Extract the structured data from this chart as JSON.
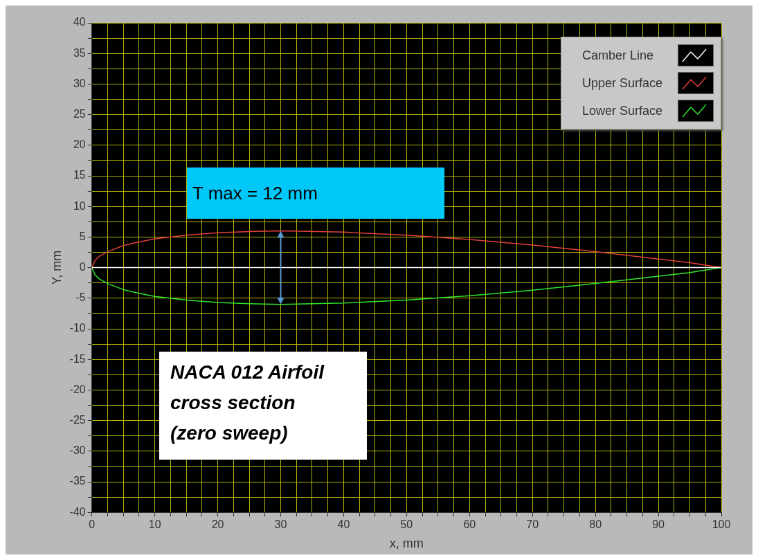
{
  "chart_data": {
    "type": "line",
    "xlabel": "x, mm",
    "ylabel": "Y, mm",
    "xlim": [
      0,
      100
    ],
    "xticks": [
      0,
      {
        "value": 2.5,
        "label": null
      },
      {
        "value": 5,
        "label": null
      },
      {
        "value": 7.5,
        "label": null
      },
      10,
      {
        "value": 12.5,
        "label": null
      },
      {
        "value": 15,
        "label": null
      },
      {
        "value": 17.5,
        "label": null
      },
      20,
      {
        "value": 22.5,
        "label": null
      },
      {
        "value": 25,
        "label": null
      },
      {
        "value": 27.5,
        "label": null
      },
      30,
      {
        "value": 32.5,
        "label": null
      },
      {
        "value": 35,
        "label": null
      },
      {
        "value": 37.5,
        "label": null
      },
      40,
      {
        "value": 42.5,
        "label": null
      },
      {
        "value": 45,
        "label": null
      },
      {
        "value": 47.5,
        "label": null
      },
      50,
      {
        "value": 52.5,
        "label": null
      },
      {
        "value": 55,
        "label": null
      },
      {
        "value": 57.5,
        "label": null
      },
      60,
      {
        "value": 62.5,
        "label": null
      },
      {
        "value": 65,
        "label": null
      },
      {
        "value": 67.5,
        "label": null
      },
      70,
      {
        "value": 72.5,
        "label": null
      },
      {
        "value": 75,
        "label": null
      },
      {
        "value": 77.5,
        "label": null
      },
      80,
      {
        "value": 82.5,
        "label": null
      },
      {
        "value": 85,
        "label": null
      },
      {
        "value": 87.5,
        "label": null
      },
      90,
      {
        "value": 92.5,
        "label": null
      },
      {
        "value": 95,
        "label": null
      },
      {
        "value": 97.5,
        "label": null
      },
      100
    ],
    "ylim": [
      -40,
      40
    ],
    "yticks": [
      -40,
      {
        "value": -37.5,
        "label": null
      },
      -35,
      {
        "value": -32.5,
        "label": null
      },
      -30,
      {
        "value": -27.5,
        "label": null
      },
      -25,
      {
        "value": -22.5,
        "label": null
      },
      -20,
      {
        "value": -17.5,
        "label": null
      },
      -15,
      {
        "value": -12.5,
        "label": null
      },
      -10,
      {
        "value": -7.5,
        "label": null
      },
      -5,
      {
        "value": -2.5,
        "label": null
      },
      0,
      {
        "value": 2.5,
        "label": null
      },
      5,
      {
        "value": 7.5,
        "label": null
      },
      10,
      {
        "value": 12.5,
        "label": null
      },
      15,
      {
        "value": 17.5,
        "label": null
      },
      20,
      {
        "value": 22.5,
        "label": null
      },
      25,
      {
        "value": 27.5,
        "label": null
      },
      30,
      {
        "value": 32.5,
        "label": null
      },
      35,
      {
        "value": 37.5,
        "label": null
      },
      40
    ],
    "grid": true,
    "legend": "top right",
    "series": [
      {
        "name": "Camber Line",
        "color": "#ffffff",
        "x": [
          0,
          100
        ],
        "values": [
          0,
          0
        ]
      },
      {
        "name": "Upper Surface",
        "color": "#e0403a",
        "x": [
          0,
          0.5,
          1.25,
          2.5,
          5,
          7.5,
          10,
          15,
          20,
          25,
          30,
          40,
          50,
          60,
          70,
          80,
          90,
          95,
          100
        ],
        "values": [
          0,
          1.2,
          1.9,
          2.6,
          3.6,
          4.2,
          4.7,
          5.3,
          5.7,
          5.9,
          6,
          5.8,
          5.3,
          4.6,
          3.7,
          2.6,
          1.4,
          0.8,
          0
        ]
      },
      {
        "name": "Lower Surface",
        "color": "#2ee62e",
        "x": [
          0,
          0.5,
          1.25,
          2.5,
          5,
          7.5,
          10,
          15,
          20,
          25,
          30,
          40,
          50,
          60,
          70,
          80,
          90,
          95,
          100
        ],
        "values": [
          0,
          -1.2,
          -1.9,
          -2.6,
          -3.6,
          -4.2,
          -4.7,
          -5.3,
          -5.7,
          -5.9,
          -6,
          -5.8,
          -5.3,
          -4.6,
          -3.7,
          -2.6,
          -1.4,
          -0.8,
          0
        ]
      }
    ],
    "annotations": [
      {
        "text": "T max = 12 mm",
        "x": 30,
        "y": 6
      },
      "NACA 012 Airfoil\ncross section\n(zero sweep)"
    ]
  }
}
